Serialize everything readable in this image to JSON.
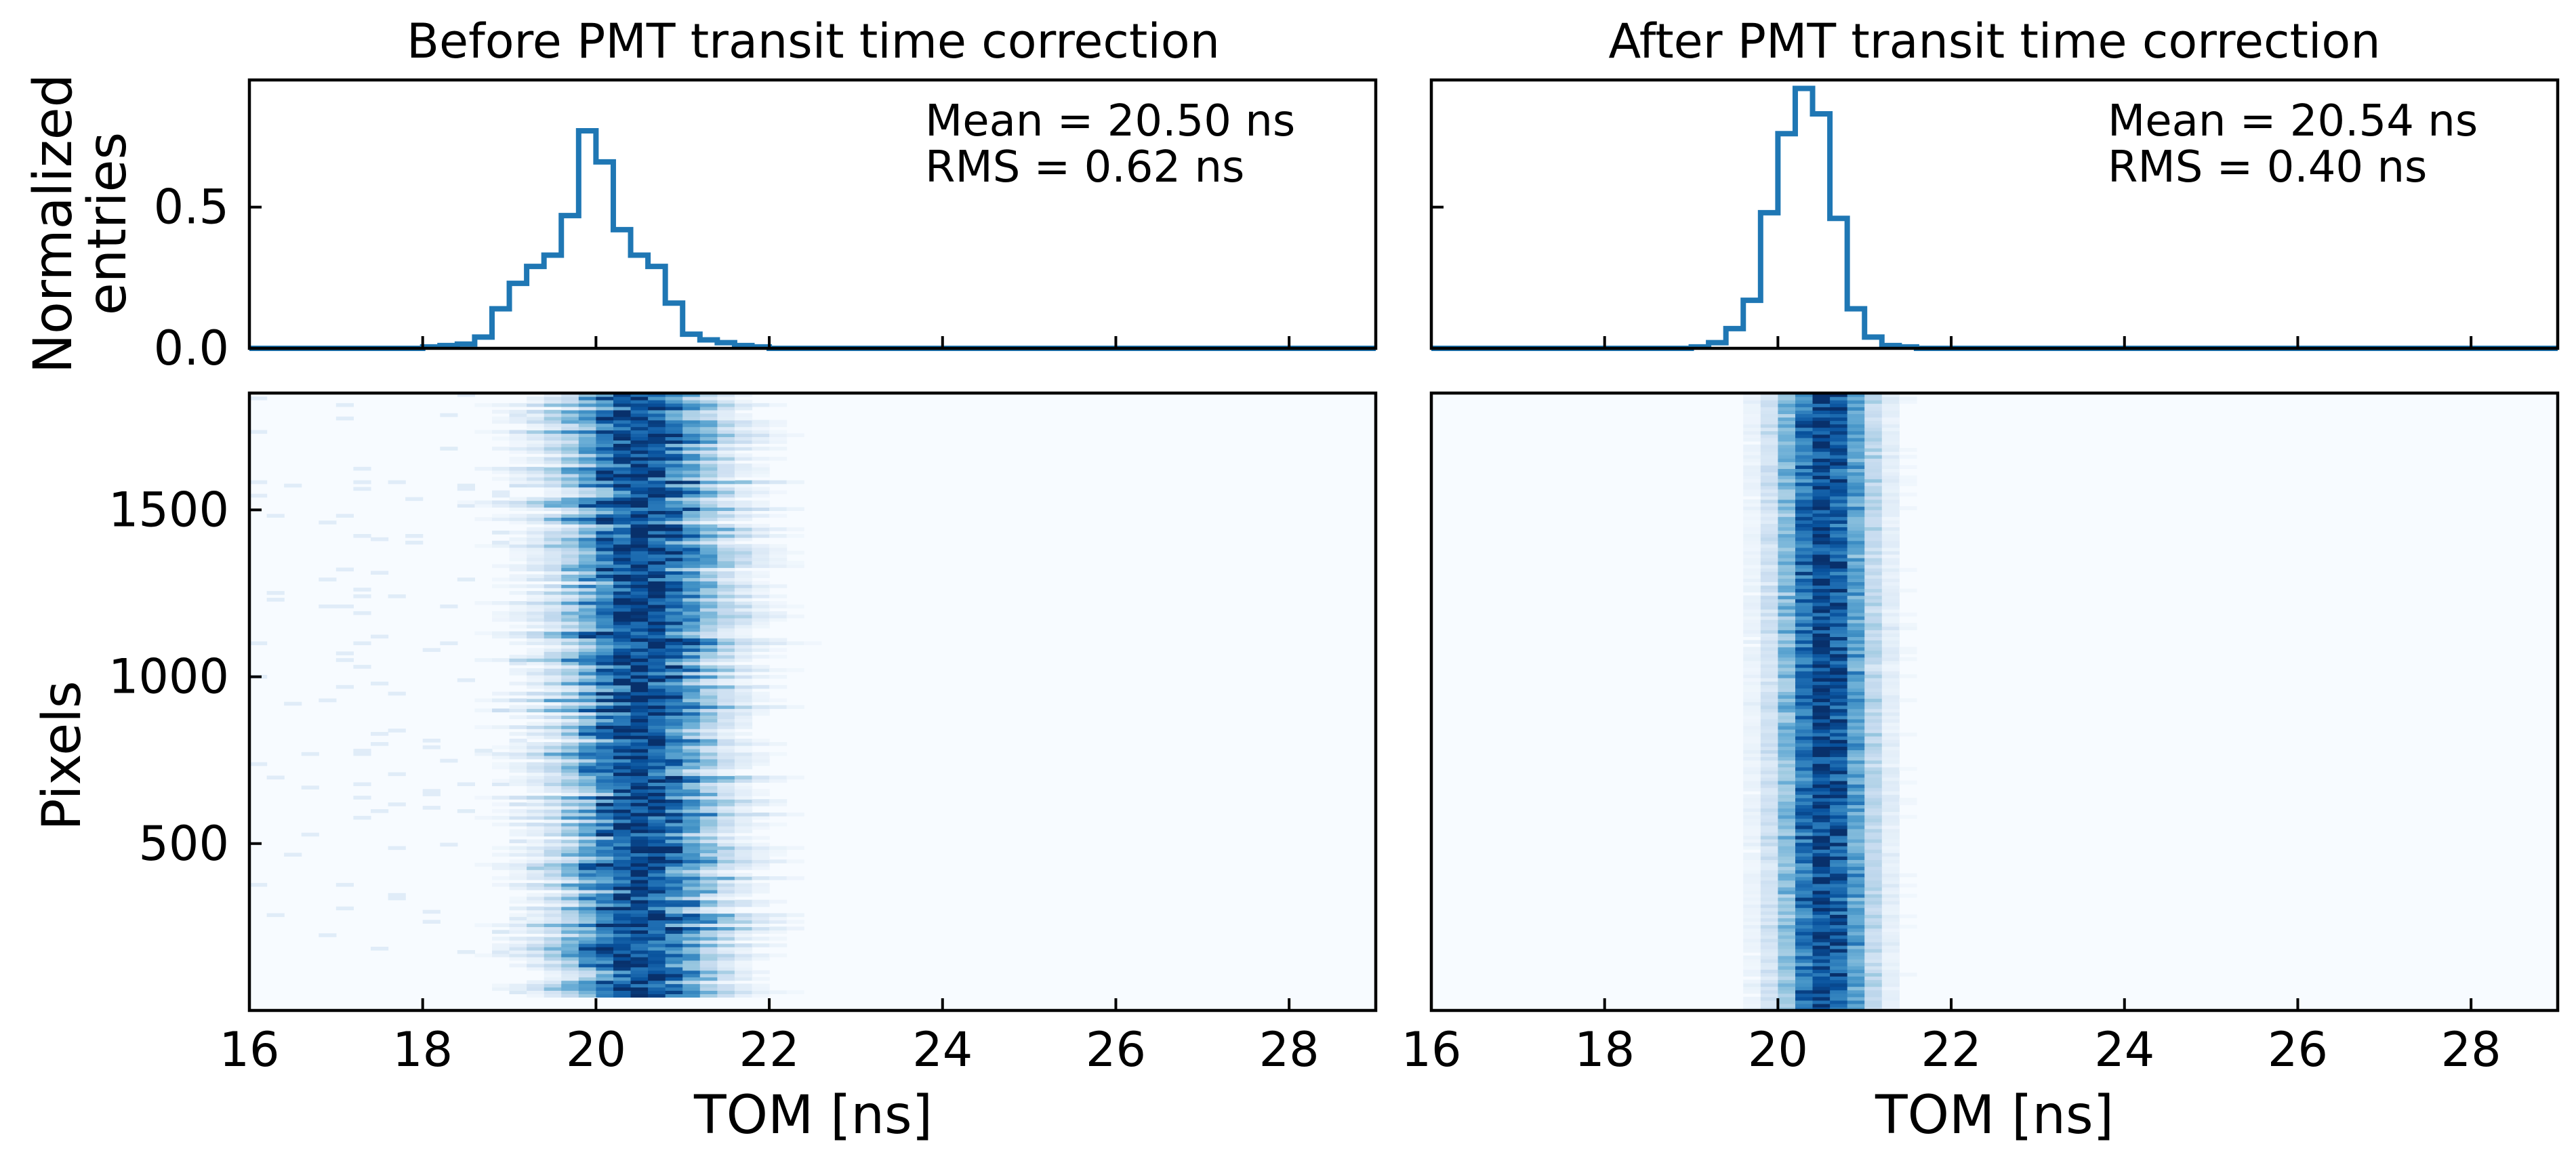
{
  "chart_data": [
    {
      "type": "histogram",
      "panel": "top-left",
      "title": "Before PMT transit time correction",
      "ylabel": "Normalized\nentries",
      "ylabel_lines": [
        "Normalized",
        "entries"
      ],
      "xlabel": "",
      "xlim": [
        16,
        29
      ],
      "ylim": [
        0,
        0.95
      ],
      "yticks": [
        0.0,
        0.5
      ],
      "ytick_labels": [
        "0.0",
        "0.5"
      ],
      "xticks": [
        16,
        18,
        20,
        22,
        24,
        26,
        28
      ],
      "bin_edges_start": 18.0,
      "bin_width": 0.2,
      "values": [
        0.005,
        0.01,
        0.015,
        0.04,
        0.14,
        0.23,
        0.29,
        0.33,
        0.47,
        0.77,
        0.66,
        0.42,
        0.33,
        0.29,
        0.16,
        0.05,
        0.03,
        0.02,
        0.01,
        0.005
      ],
      "annotations": [
        "Mean = 20.50 ns",
        "RMS = 0.62 ns"
      ],
      "color": "#1f77b4"
    },
    {
      "type": "histogram",
      "panel": "top-right",
      "title": "After PMT transit time correction",
      "xlim": [
        16,
        29
      ],
      "ylim": [
        0,
        0.95
      ],
      "yticks": [
        0.0,
        0.5
      ],
      "xticks": [
        16,
        18,
        20,
        22,
        24,
        26,
        28
      ],
      "bin_edges_start": 19.0,
      "bin_width": 0.2,
      "values": [
        0.005,
        0.02,
        0.07,
        0.17,
        0.48,
        0.76,
        0.92,
        0.83,
        0.46,
        0.14,
        0.04,
        0.01,
        0.005
      ],
      "annotations": [
        "Mean = 20.54 ns",
        "RMS = 0.40 ns"
      ],
      "color": "#1f77b4"
    },
    {
      "type": "heatmap",
      "panel": "bottom-left",
      "xlabel": "TOM [ns]",
      "ylabel": "Pixels",
      "xlim": [
        16,
        29
      ],
      "ylim": [
        0,
        1850
      ],
      "xticks": [
        16,
        18,
        20,
        22,
        24,
        26,
        28
      ],
      "xtick_labels": [
        "16",
        "18",
        "20",
        "22",
        "24",
        "26",
        "28"
      ],
      "yticks": [
        500,
        1000,
        1500
      ],
      "ytick_labels": [
        "500",
        "1000",
        "1500"
      ],
      "pixel_range": [
        40,
        1850
      ],
      "center": 20.5,
      "rms": 0.62,
      "colormap": "Blues"
    },
    {
      "type": "heatmap",
      "panel": "bottom-right",
      "xlabel": "TOM [ns]",
      "xlim": [
        16,
        29
      ],
      "ylim": [
        0,
        1850
      ],
      "xticks": [
        16,
        18,
        20,
        22,
        24,
        26,
        28
      ],
      "xtick_labels": [
        "16",
        "18",
        "20",
        "22",
        "24",
        "26",
        "28"
      ],
      "pixel_range": [
        0,
        1850
      ],
      "center": 20.54,
      "rms": 0.4,
      "colormap": "Blues"
    }
  ]
}
